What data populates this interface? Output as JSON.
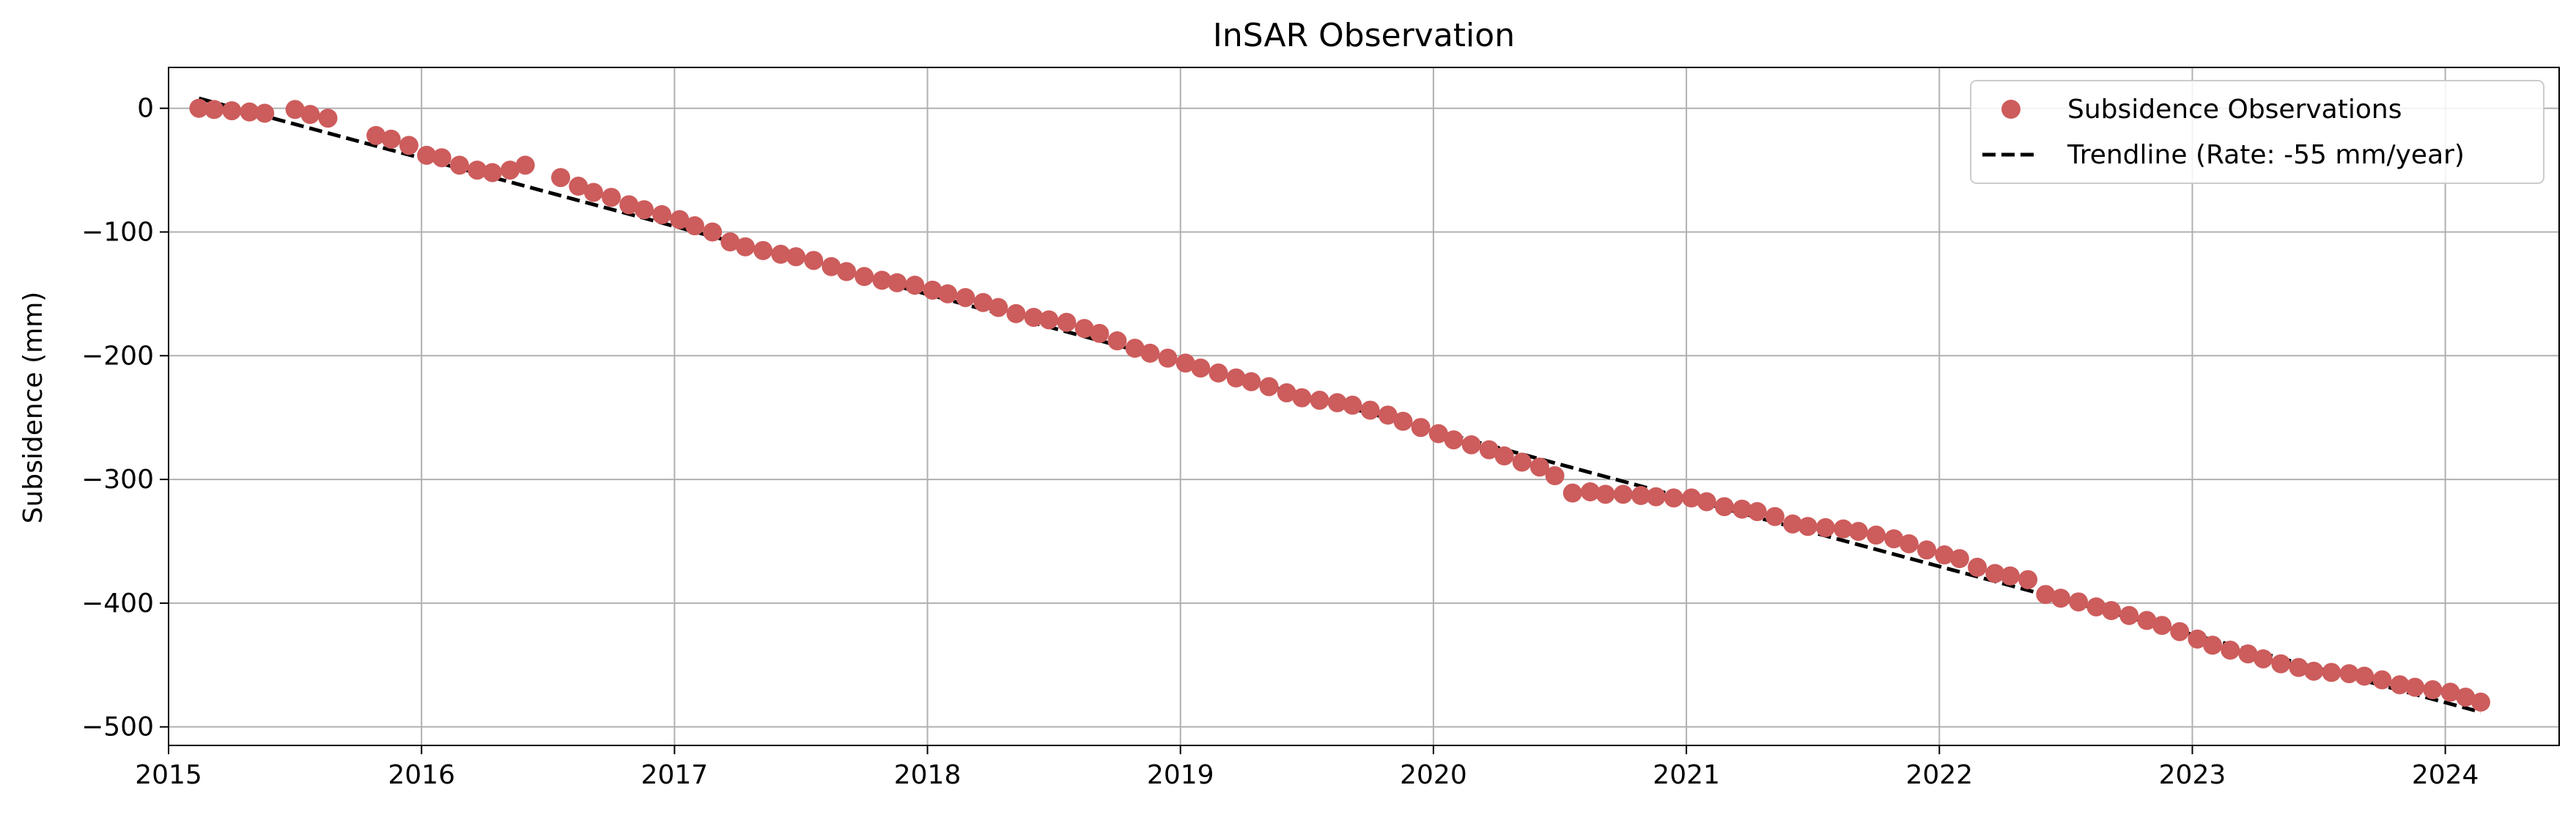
{
  "chart_data": {
    "type": "scatter",
    "title": "InSAR Observation",
    "xlabel": "",
    "ylabel": "Subsidence (mm)",
    "xlim": [
      2015.0,
      2024.45
    ],
    "ylim": [
      -515,
      33
    ],
    "xticks": [
      2015,
      2016,
      2017,
      2018,
      2019,
      2020,
      2021,
      2022,
      2023,
      2024
    ],
    "yticks": [
      0,
      -100,
      -200,
      -300,
      -400,
      -500
    ],
    "grid": true,
    "legend_position": "top-right",
    "series": [
      {
        "name": "Subsidence Observations",
        "kind": "scatter",
        "color": "#cd5c5c",
        "x": [
          2015.12,
          2015.18,
          2015.25,
          2015.32,
          2015.38,
          2015.5,
          2015.56,
          2015.63,
          2015.82,
          2015.88,
          2015.95,
          2016.02,
          2016.08,
          2016.15,
          2016.22,
          2016.28,
          2016.35,
          2016.41,
          2016.55,
          2016.62,
          2016.68,
          2016.75,
          2016.82,
          2016.88,
          2016.95,
          2017.02,
          2017.08,
          2017.15,
          2017.22,
          2017.28,
          2017.35,
          2017.42,
          2017.48,
          2017.55,
          2017.62,
          2017.68,
          2017.75,
          2017.82,
          2017.88,
          2017.95,
          2018.02,
          2018.08,
          2018.15,
          2018.22,
          2018.28,
          2018.35,
          2018.42,
          2018.48,
          2018.55,
          2018.62,
          2018.68,
          2018.75,
          2018.82,
          2018.88,
          2018.95,
          2019.02,
          2019.08,
          2019.15,
          2019.22,
          2019.28,
          2019.35,
          2019.42,
          2019.48,
          2019.55,
          2019.62,
          2019.68,
          2019.75,
          2019.82,
          2019.88,
          2019.95,
          2020.02,
          2020.08,
          2020.15,
          2020.22,
          2020.28,
          2020.35,
          2020.42,
          2020.48,
          2020.55,
          2020.62,
          2020.68,
          2020.75,
          2020.82,
          2020.88,
          2020.95,
          2021.02,
          2021.08,
          2021.15,
          2021.22,
          2021.28,
          2021.35,
          2021.42,
          2021.48,
          2021.55,
          2021.62,
          2021.68,
          2021.75,
          2021.82,
          2021.88,
          2021.95,
          2022.02,
          2022.08,
          2022.15,
          2022.22,
          2022.28,
          2022.35,
          2022.42,
          2022.48,
          2022.55,
          2022.62,
          2022.68,
          2022.75,
          2022.82,
          2022.88,
          2022.95,
          2023.02,
          2023.08,
          2023.15,
          2023.22,
          2023.28,
          2023.35,
          2023.42,
          2023.48,
          2023.55,
          2023.62,
          2023.68,
          2023.75,
          2023.82,
          2023.88,
          2023.95,
          2024.02,
          2024.08,
          2024.14
        ],
        "y": [
          0,
          -1,
          -2,
          -3,
          -4,
          -1,
          -5,
          -8,
          -22,
          -25,
          -30,
          -38,
          -40,
          -46,
          -50,
          -52,
          -50,
          -46,
          -56,
          -63,
          -68,
          -72,
          -78,
          -82,
          -86,
          -90,
          -95,
          -100,
          -108,
          -112,
          -115,
          -118,
          -120,
          -123,
          -128,
          -132,
          -136,
          -139,
          -141,
          -143,
          -147,
          -150,
          -153,
          -157,
          -161,
          -166,
          -169,
          -171,
          -173,
          -178,
          -182,
          -188,
          -194,
          -198,
          -202,
          -206,
          -210,
          -214,
          -218,
          -221,
          -225,
          -230,
          -234,
          -236,
          -238,
          -240,
          -244,
          -248,
          -253,
          -258,
          -263,
          -268,
          -272,
          -276,
          -281,
          -286,
          -290,
          -297,
          -311,
          -310,
          -312,
          -312,
          -313,
          -314,
          -315,
          -315,
          -318,
          -322,
          -324,
          -326,
          -330,
          -336,
          -338,
          -339,
          -340,
          -342,
          -345,
          -348,
          -352,
          -357,
          -361,
          -364,
          -371,
          -376,
          -378,
          -381,
          -393,
          -396,
          -399,
          -403,
          -406,
          -410,
          -414,
          -418,
          -423,
          -429,
          -434,
          -438,
          -441,
          -445,
          -449,
          -452,
          -455,
          -456,
          -457,
          -459,
          -462,
          -466,
          -468,
          -470,
          -472,
          -476,
          -480
        ]
      },
      {
        "name": "Trendline (Rate: -55 mm/year)",
        "kind": "line",
        "style": "dashed",
        "color": "#000000",
        "x": [
          2015.12,
          2024.14
        ],
        "y": [
          8,
          -488
        ]
      }
    ]
  }
}
